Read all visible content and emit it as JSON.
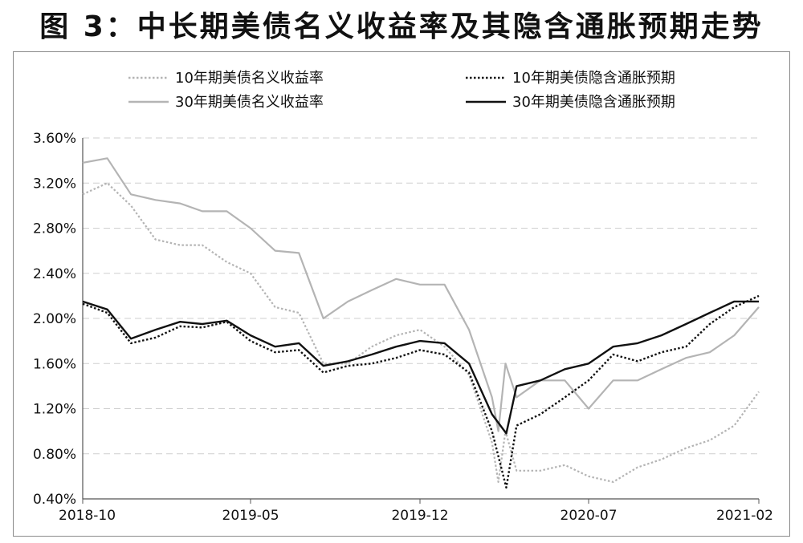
{
  "title": "图 3：中长期美债名义收益率及其隐含通胀预期走势",
  "chart_data": {
    "type": "line",
    "ylim": [
      0.4,
      3.6
    ],
    "y_ticks": [
      "0.40%",
      "0.80%",
      "1.20%",
      "1.60%",
      "2.00%",
      "2.40%",
      "2.80%",
      "3.20%",
      "3.60%"
    ],
    "x_ticks": [
      "2018-10",
      "2019-05",
      "2019-12",
      "2020-07",
      "2021-02"
    ],
    "x_range": [
      "2018-10",
      "2021-02"
    ],
    "grid": "horizontal dashed",
    "legend_position": "top",
    "series": [
      {
        "name": "10年期美债名义收益率",
        "style": "dotted",
        "color": "#b4b4b4",
        "x": [
          "2018-10",
          "2018-11",
          "2018-12",
          "2019-01",
          "2019-02",
          "2019-03",
          "2019-04",
          "2019-05",
          "2019-06",
          "2019-07",
          "2019-08",
          "2019-09",
          "2019-10",
          "2019-11",
          "2019-12",
          "2020-01",
          "2020-02",
          "2020-03",
          "2020-03-09",
          "2020-03-18",
          "2020-04",
          "2020-05",
          "2020-06",
          "2020-07",
          "2020-08",
          "2020-09",
          "2020-10",
          "2020-11",
          "2020-12",
          "2021-01",
          "2021-02"
        ],
        "values": [
          3.1,
          3.2,
          3.0,
          2.7,
          2.65,
          2.65,
          2.5,
          2.4,
          2.1,
          2.05,
          1.6,
          1.6,
          1.75,
          1.85,
          1.9,
          1.75,
          1.5,
          0.9,
          0.55,
          1.0,
          0.65,
          0.65,
          0.7,
          0.6,
          0.55,
          0.68,
          0.75,
          0.85,
          0.92,
          1.05,
          1.35
        ]
      },
      {
        "name": "10年期美债隐含通胀预期",
        "style": "dotted",
        "color": "#111111",
        "x": [
          "2018-10",
          "2018-11",
          "2018-12",
          "2019-01",
          "2019-02",
          "2019-03",
          "2019-04",
          "2019-05",
          "2019-06",
          "2019-07",
          "2019-08",
          "2019-09",
          "2019-10",
          "2019-11",
          "2019-12",
          "2020-01",
          "2020-02",
          "2020-03",
          "2020-03-19",
          "2020-04",
          "2020-05",
          "2020-06",
          "2020-07",
          "2020-08",
          "2020-09",
          "2020-10",
          "2020-11",
          "2020-12",
          "2021-01",
          "2021-02"
        ],
        "values": [
          2.13,
          2.05,
          1.78,
          1.83,
          1.93,
          1.92,
          1.97,
          1.8,
          1.7,
          1.72,
          1.52,
          1.58,
          1.6,
          1.65,
          1.72,
          1.68,
          1.52,
          1.0,
          0.5,
          1.05,
          1.15,
          1.3,
          1.45,
          1.68,
          1.62,
          1.7,
          1.75,
          1.95,
          2.1,
          2.2
        ]
      },
      {
        "name": "30年期美债名义收益率",
        "style": "solid",
        "color": "#b4b4b4",
        "x": [
          "2018-10",
          "2018-11",
          "2018-12",
          "2019-01",
          "2019-02",
          "2019-03",
          "2019-04",
          "2019-05",
          "2019-06",
          "2019-07",
          "2019-08",
          "2019-09",
          "2019-10",
          "2019-11",
          "2019-12",
          "2020-01",
          "2020-02",
          "2020-03",
          "2020-03-09",
          "2020-03-18",
          "2020-04",
          "2020-05",
          "2020-06",
          "2020-07",
          "2020-08",
          "2020-09",
          "2020-10",
          "2020-11",
          "2020-12",
          "2021-01",
          "2021-02"
        ],
        "values": [
          3.38,
          3.42,
          3.1,
          3.05,
          3.02,
          2.95,
          2.95,
          2.8,
          2.6,
          2.58,
          2.0,
          2.15,
          2.25,
          2.35,
          2.3,
          2.3,
          1.9,
          1.3,
          1.0,
          1.6,
          1.3,
          1.45,
          1.45,
          1.2,
          1.45,
          1.45,
          1.55,
          1.65,
          1.7,
          1.85,
          2.1
        ]
      },
      {
        "name": "30年期美债隐含通胀预期",
        "style": "solid",
        "color": "#111111",
        "x": [
          "2018-10",
          "2018-11",
          "2018-12",
          "2019-01",
          "2019-02",
          "2019-03",
          "2019-04",
          "2019-05",
          "2019-06",
          "2019-07",
          "2019-08",
          "2019-09",
          "2019-10",
          "2019-11",
          "2019-12",
          "2020-01",
          "2020-02",
          "2020-03",
          "2020-03-19",
          "2020-04",
          "2020-05",
          "2020-06",
          "2020-07",
          "2020-08",
          "2020-09",
          "2020-10",
          "2020-11",
          "2020-12",
          "2021-01",
          "2021-02"
        ],
        "values": [
          2.15,
          2.08,
          1.82,
          1.9,
          1.97,
          1.95,
          1.98,
          1.85,
          1.75,
          1.78,
          1.58,
          1.62,
          1.68,
          1.75,
          1.8,
          1.78,
          1.6,
          1.15,
          0.98,
          1.4,
          1.45,
          1.55,
          1.6,
          1.75,
          1.78,
          1.85,
          1.95,
          2.05,
          2.15,
          2.15
        ]
      }
    ]
  }
}
